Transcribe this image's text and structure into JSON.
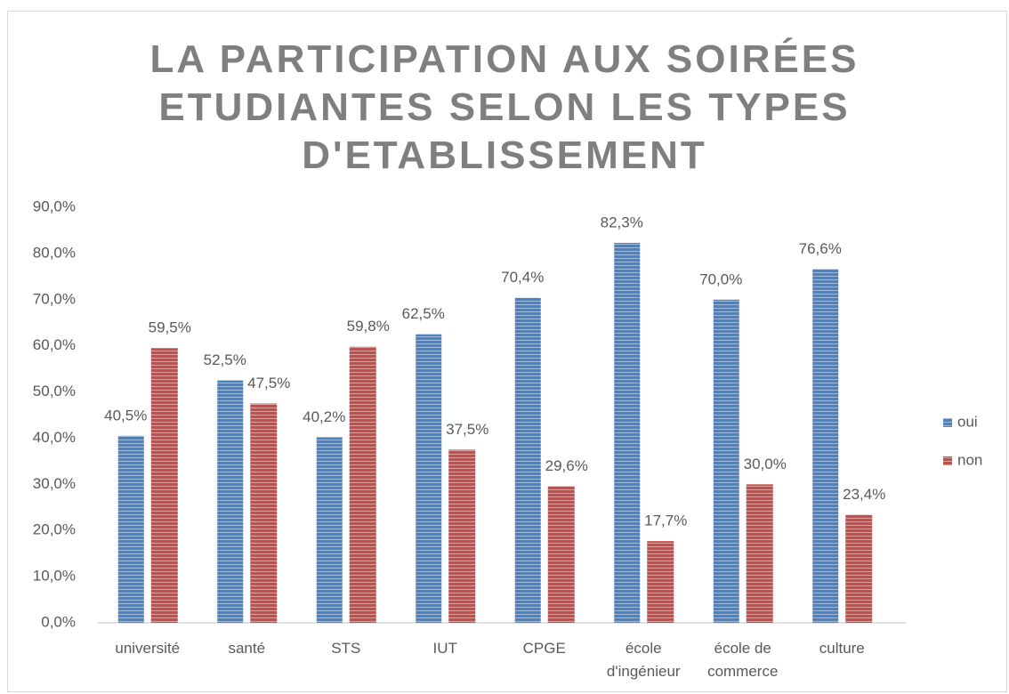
{
  "chart_data": {
    "type": "bar",
    "title": "LA PARTICIPATION AUX SOIRÉES ETUDIANTES SELON LES TYPES D'ETABLISSEMENT",
    "categories": [
      "université",
      "santé",
      "STS",
      "IUT",
      "CPGE",
      "école d'ingénieur",
      "école de commerce",
      "culture"
    ],
    "series": [
      {
        "name": "oui",
        "color": "#4f81bd",
        "values": [
          40.5,
          52.5,
          40.2,
          62.5,
          70.4,
          82.3,
          70.0,
          76.6
        ],
        "value_labels": [
          "40,5%",
          "52,5%",
          "40,2%",
          "62,5%",
          "70,4%",
          "82,3%",
          "70,0%",
          "76,6%"
        ]
      },
      {
        "name": "non",
        "color": "#c0504d",
        "values": [
          59.5,
          47.5,
          59.8,
          37.5,
          29.6,
          17.7,
          30.0,
          23.4
        ],
        "value_labels": [
          "59,5%",
          "47,5%",
          "59,8%",
          "37,5%",
          "29,6%",
          "17,7%",
          "30,0%",
          "23,4%"
        ]
      }
    ],
    "ylim": [
      0,
      90
    ],
    "yticks": [
      {
        "value": 0,
        "label": "0,0%"
      },
      {
        "value": 10,
        "label": "10,0%"
      },
      {
        "value": 20,
        "label": "20,0%"
      },
      {
        "value": 30,
        "label": "30,0%"
      },
      {
        "value": 40,
        "label": "40,0%"
      },
      {
        "value": 50,
        "label": "50,0%"
      },
      {
        "value": 60,
        "label": "60,0%"
      },
      {
        "value": 70,
        "label": "70,0%"
      },
      {
        "value": 80,
        "label": "80,0%"
      },
      {
        "value": 90,
        "label": "90,0%"
      }
    ],
    "grid": false,
    "legend": "right"
  }
}
